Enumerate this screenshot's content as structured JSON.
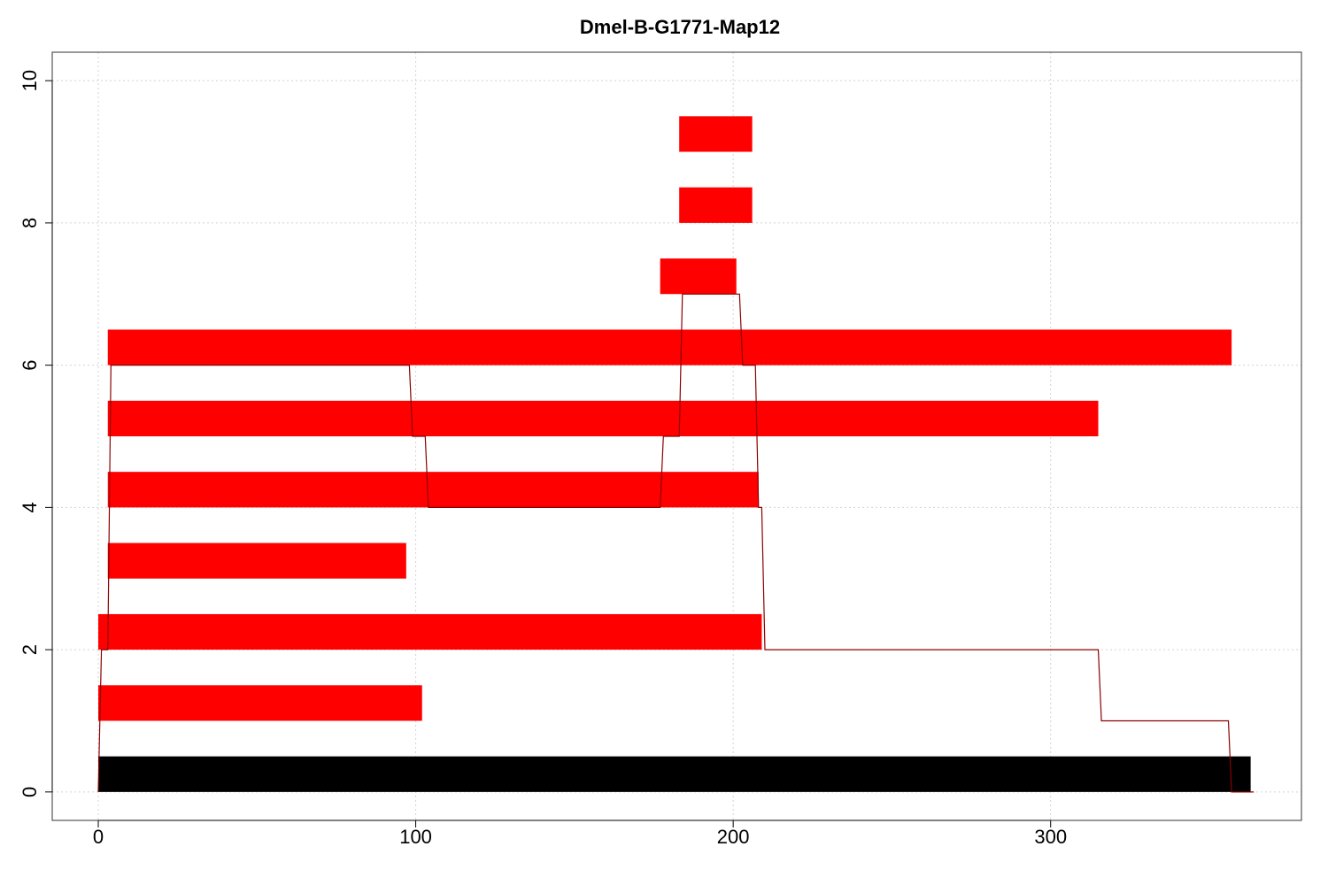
{
  "chart_data": {
    "type": "bar",
    "title": "Dmel-B-G1771-Map12",
    "xlabel": "",
    "ylabel": "",
    "xlim": [
      -14.5,
      379
    ],
    "ylim": [
      -0.4,
      10.4
    ],
    "x_ticks": [
      0,
      100,
      200,
      300
    ],
    "y_ticks": [
      0,
      2,
      4,
      6,
      8,
      10
    ],
    "grid": true,
    "reference_bar": {
      "x_start": 0,
      "x_end": 363,
      "y_bottom": 0,
      "y_top": 0.5,
      "color": "#000000"
    },
    "segments": [
      {
        "x_start": 0,
        "x_end": 102,
        "y_bottom": 1,
        "y_top": 1.5
      },
      {
        "x_start": 0,
        "x_end": 209,
        "y_bottom": 2,
        "y_top": 2.5
      },
      {
        "x_start": 3,
        "x_end": 97,
        "y_bottom": 3,
        "y_top": 3.5
      },
      {
        "x_start": 3,
        "x_end": 208,
        "y_bottom": 4,
        "y_top": 4.5
      },
      {
        "x_start": 3,
        "x_end": 315,
        "y_bottom": 5,
        "y_top": 5.5
      },
      {
        "x_start": 3,
        "x_end": 357,
        "y_bottom": 6,
        "y_top": 6.5
      },
      {
        "x_start": 177,
        "x_end": 201,
        "y_bottom": 7,
        "y_top": 7.5
      },
      {
        "x_start": 183,
        "x_end": 206,
        "y_bottom": 8,
        "y_top": 8.5
      },
      {
        "x_start": 183,
        "x_end": 206,
        "y_bottom": 9,
        "y_top": 9.5
      }
    ],
    "segment_color": "#ff0000",
    "coverage_line": {
      "x": [
        0,
        1,
        2,
        3,
        4,
        98,
        99,
        103,
        104,
        177,
        178,
        183,
        184,
        202,
        203,
        207,
        208,
        209,
        210,
        315,
        316,
        356,
        357,
        364
      ],
      "y": [
        0,
        2,
        2,
        2,
        6,
        6,
        5,
        5,
        4,
        4,
        5,
        5,
        7,
        7,
        6,
        6,
        4,
        4,
        2,
        2,
        1,
        1,
        0,
        0
      ],
      "color": "#8b0000"
    }
  }
}
